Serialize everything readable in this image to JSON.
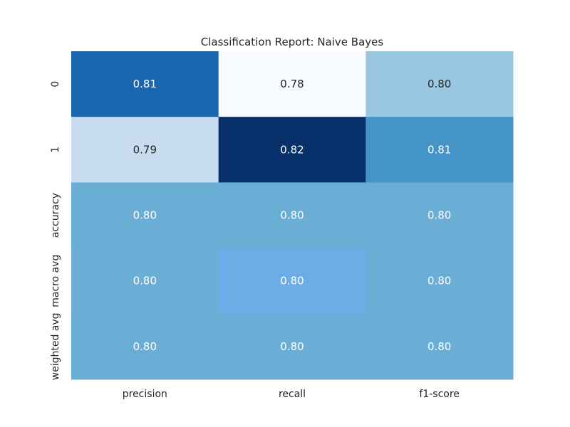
{
  "chart_data": {
    "type": "heatmap",
    "title": "Classification Report: Naive Bayes",
    "xlabel": "",
    "ylabel": "",
    "x_categories": [
      "precision",
      "recall",
      "f1-score"
    ],
    "y_categories": [
      "0",
      "1",
      "accuracy",
      "macro avg",
      "weighted avg"
    ],
    "values": [
      [
        0.81,
        0.78,
        0.8
      ],
      [
        0.79,
        0.82,
        0.81
      ],
      [
        0.8,
        0.8,
        0.8
      ],
      [
        0.8,
        0.8,
        0.8
      ],
      [
        0.8,
        0.8,
        0.8
      ]
    ],
    "cells": [
      {
        "row": 0,
        "col": 0,
        "value": 0.81,
        "label": "0.81",
        "color": "#1b67af"
      },
      {
        "row": 0,
        "col": 1,
        "value": 0.78,
        "label": "0.78",
        "color": "#f7fbff"
      },
      {
        "row": 0,
        "col": 2,
        "value": 0.8,
        "label": "0.80",
        "color": "#9ac8e0"
      },
      {
        "row": 1,
        "col": 0,
        "value": 0.79,
        "label": "0.79",
        "color": "#c8dcf0"
      },
      {
        "row": 1,
        "col": 1,
        "value": 0.82,
        "label": "0.82",
        "color": "#08306b"
      },
      {
        "row": 1,
        "col": 2,
        "value": 0.81,
        "label": "0.81",
        "color": "#4594c7"
      },
      {
        "row": 2,
        "col": 0,
        "value": 0.8,
        "label": "0.80",
        "color": "#6aadd5"
      },
      {
        "row": 2,
        "col": 1,
        "value": 0.8,
        "label": "0.80",
        "color": "#6aadd5"
      },
      {
        "row": 2,
        "col": 2,
        "value": 0.8,
        "label": "0.80",
        "color": "#6aadd5"
      },
      {
        "row": 3,
        "col": 0,
        "value": 0.8,
        "label": "0.80",
        "color": "#6caed6"
      },
      {
        "row": 3,
        "col": 1,
        "value": 0.8,
        "label": "0.80",
        "color": "#6bade6"
      },
      {
        "row": 3,
        "col": 2,
        "value": 0.8,
        "label": "0.80",
        "color": "#6aadd5"
      },
      {
        "row": 4,
        "col": 0,
        "value": 0.8,
        "label": "0.80",
        "color": "#6aadd5"
      },
      {
        "row": 4,
        "col": 1,
        "value": 0.8,
        "label": "0.80",
        "color": "#6aadd5"
      },
      {
        "row": 4,
        "col": 2,
        "value": 0.8,
        "label": "0.80",
        "color": "#6aadd5"
      }
    ],
    "colormap": "Blues",
    "colorbar": false,
    "grid": false,
    "legend": "none",
    "colors": {
      "light_text": "#ffffff",
      "dark_text": "#262626"
    }
  }
}
